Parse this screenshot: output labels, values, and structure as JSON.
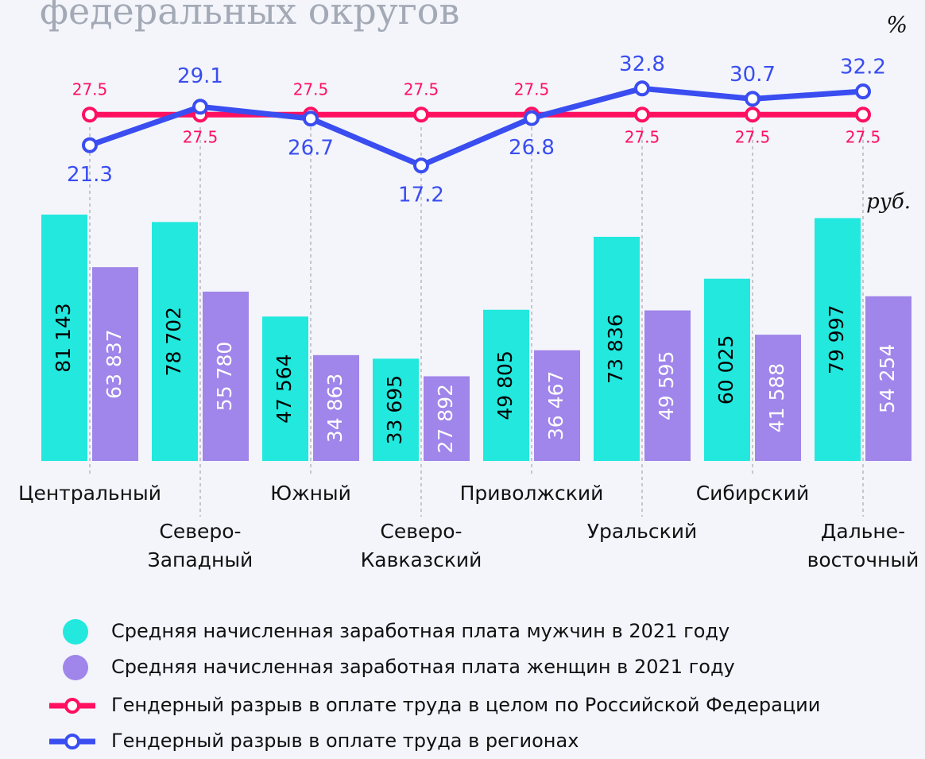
{
  "chart_data": {
    "type": "bar-line",
    "title": "федеральных округов",
    "y_unit": "руб.",
    "y2_unit": "%",
    "categories": [
      [
        "Центральный"
      ],
      [
        "Северо-",
        "Западный"
      ],
      [
        "Южный"
      ],
      [
        "Северо-",
        "Кавказский"
      ],
      [
        "Приволжский"
      ],
      [
        "Уральский"
      ],
      [
        "Сибирский"
      ],
      [
        "Дальне-",
        "восточный"
      ]
    ],
    "ylim": [
      0,
      100000
    ],
    "y2lim": [
      0,
      50
    ],
    "series": [
      {
        "name": "Средняя начисленная заработная плата мужчин в 2021 году",
        "color": "#22e8de",
        "label_color": "#000000",
        "values": [
          81143,
          78702,
          47564,
          33695,
          49805,
          73836,
          60025,
          79997
        ],
        "value_labels": [
          "81 143",
          "78 702",
          "47 564",
          "33 695",
          "49 805",
          "73 836",
          "60 025",
          "79 997"
        ]
      },
      {
        "name": "Средняя начисленная заработная плата женщин в 2021 году",
        "color": "#a085ea",
        "label_color": "#ffffff",
        "values": [
          63837,
          55780,
          34863,
          27892,
          36467,
          49595,
          41588,
          54254
        ],
        "value_labels": [
          "63 837",
          "55 780",
          "34 863",
          "27 892",
          "36 467",
          "49 595",
          "41 588",
          "54 254"
        ]
      },
      {
        "name": "Гендерный разрыв в оплате труда в целом по Российской Федерации",
        "color": "#ff1060",
        "axis": "y2",
        "values": [
          27.5,
          27.5,
          27.5,
          27.5,
          27.5,
          27.5,
          27.5,
          27.5
        ]
      },
      {
        "name": "Гендерный разрыв в оплате труда в регионах",
        "color": "#3a4df0",
        "axis": "y2",
        "values": [
          21.3,
          29.1,
          26.7,
          17.2,
          26.8,
          32.8,
          30.7,
          32.2
        ]
      }
    ]
  }
}
